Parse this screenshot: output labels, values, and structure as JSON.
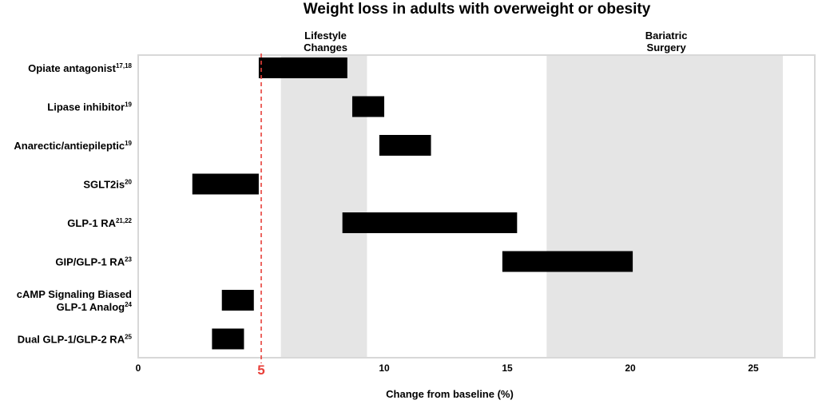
{
  "chart_data": {
    "type": "bar",
    "orientation": "horizontal-range",
    "title": "Weight loss in adults with overweight or obesity",
    "xlabel": "Change from baseline (%)",
    "ylabel": "",
    "xlim": [
      0,
      27.5
    ],
    "xticks": [
      0,
      10,
      15,
      20,
      25
    ],
    "grid": false,
    "categories": [
      {
        "label": "Opiate antagonist",
        "sup": "17,18"
      },
      {
        "label": "Lipase inhibitor",
        "sup": "19"
      },
      {
        "label": "Anarectic/antiepileptic",
        "sup": "19"
      },
      {
        "label": "SGLT2is",
        "sup": "20"
      },
      {
        "label": "GLP-1 RA",
        "sup": "21,22"
      },
      {
        "label": "GIP/GLP-1 RA",
        "sup": "23"
      },
      {
        "label": "cAMP Signaling Biased",
        "label2": "GLP-1 Analog",
        "sup": "24"
      },
      {
        "label": "Dual GLP-1/GLP-2 RA",
        "sup": "25"
      }
    ],
    "series": [
      {
        "ranges": [
          [
            4.9,
            8.5
          ],
          [
            8.7,
            10.0
          ],
          [
            9.8,
            11.9
          ],
          [
            2.2,
            4.9
          ],
          [
            8.3,
            15.4
          ],
          [
            14.8,
            20.1
          ],
          [
            3.4,
            4.7
          ],
          [
            3.0,
            4.3
          ]
        ]
      }
    ],
    "bands": [
      {
        "label_line1": "Lifestyle",
        "label_line2": "Changes",
        "range": [
          5.8,
          9.3
        ],
        "color": "#e5e5e5"
      },
      {
        "label_line1": "Bariatric",
        "label_line2": "Surgery",
        "range": [
          16.6,
          26.2
        ],
        "color": "#e5e5e5"
      }
    ],
    "reference_line": {
      "value": 5,
      "label": "5",
      "color": "#e8403a",
      "style": "dashed"
    },
    "bar_color": "#000000",
    "frame_color": "#d8d8d8"
  }
}
